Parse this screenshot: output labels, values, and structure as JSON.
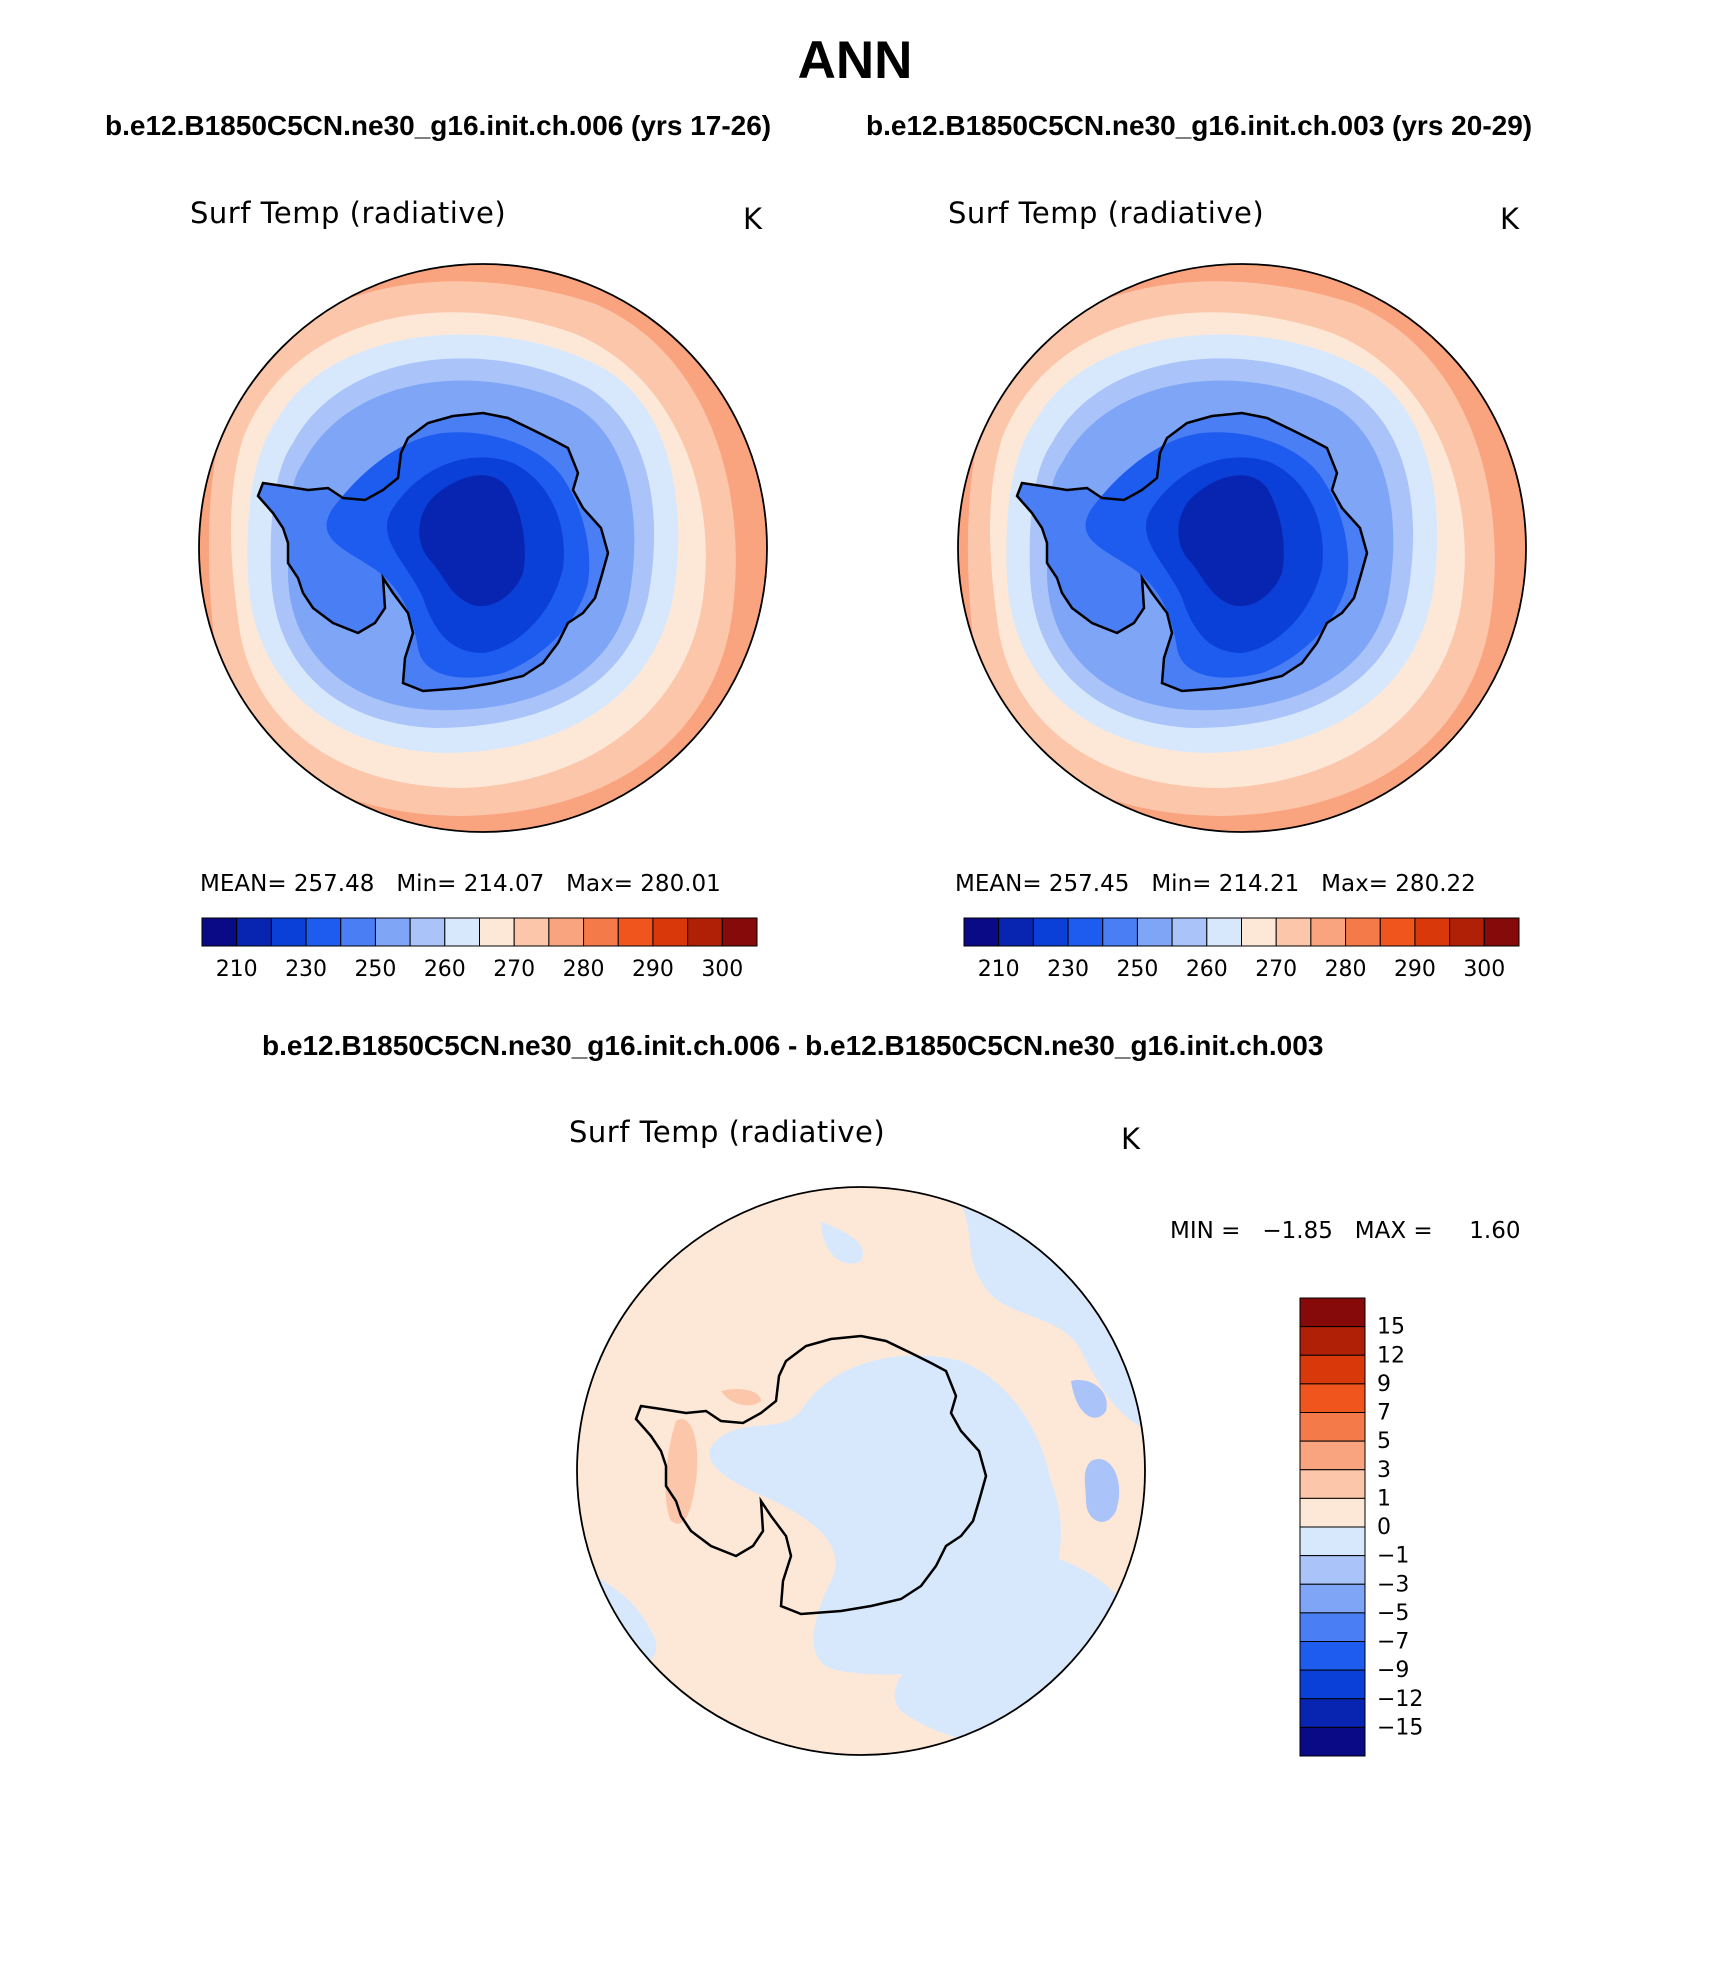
{
  "main_title": "ANN",
  "case1_title": "b.e12.B1850C5CN.ne30_g16.init.ch.006 (yrs 17-26)",
  "case2_title": "b.e12.B1850C5CN.ne30_g16.init.ch.003 (yrs 20-29)",
  "diff_title": "b.e12.B1850C5CN.ne30_g16.init.ch.006 - b.e12.B1850C5CN.ne30_g16.init.ch.003",
  "panels": [
    {
      "variable": "Surf Temp (radiative)",
      "units": "K",
      "mean_label": "MEAN=",
      "mean": "257.48",
      "min_label": "Min=",
      "min": "214.07",
      "max_label": "Max=",
      "max": "280.01"
    },
    {
      "variable": "Surf Temp (radiative)",
      "units": "K",
      "mean_label": "MEAN=",
      "mean": "257.45",
      "min_label": "Min=",
      "min": "214.21",
      "max_label": "Max=",
      "max": "280.22"
    },
    {
      "variable": "Surf Temp (radiative)",
      "units": "K",
      "min_label": "MIN =",
      "min": "−1.85",
      "max_label": "MAX =",
      "max": "1.60"
    }
  ],
  "colorbar_abs": {
    "ticks": [
      "210",
      "230",
      "250",
      "260",
      "270",
      "280",
      "290",
      "300"
    ],
    "colors": [
      "#0a0a87",
      "#0725b0",
      "#0b40d8",
      "#1e5cf0",
      "#4a7ef5",
      "#7fa5f7",
      "#aac4fa",
      "#d8e8fc",
      "#fde8d8",
      "#fcc6aa",
      "#f9a37f",
      "#f57a4a",
      "#f0551e",
      "#d9380b",
      "#b02007",
      "#870a0a"
    ]
  },
  "colorbar_diff": {
    "ticks": [
      "15",
      "12",
      "9",
      "7",
      "5",
      "3",
      "1",
      "0",
      "−1",
      "−3",
      "−5",
      "−7",
      "−9",
      "−12",
      "−15"
    ],
    "colors": [
      "#870a0a",
      "#b02007",
      "#d9380b",
      "#f0551e",
      "#f57a4a",
      "#f9a37f",
      "#fcc6aa",
      "#fde8d8",
      "#d8e8fc",
      "#aac4fa",
      "#7fa5f7",
      "#4a7ef5",
      "#1e5cf0",
      "#0b40d8",
      "#0725b0",
      "#0a0a87"
    ]
  },
  "map_colors": {
    "ring_outer": "#f9a37f",
    "ring_mid": "#fcc6aa",
    "ring_light": "#fde8d8",
    "ocean_cold1": "#d8e8fc",
    "ocean_cold2": "#aac4fa",
    "ocean_cold3": "#7fa5f7",
    "land1": "#4a7ef5",
    "land2": "#1e5cf0",
    "land3": "#0b40d8",
    "land4": "#0725b0",
    "diff_pos": "#fde8d8",
    "diff_neg": "#d8e8fc",
    "diff_pos2": "#fcc6aa",
    "diff_neg2": "#aac4fa"
  }
}
